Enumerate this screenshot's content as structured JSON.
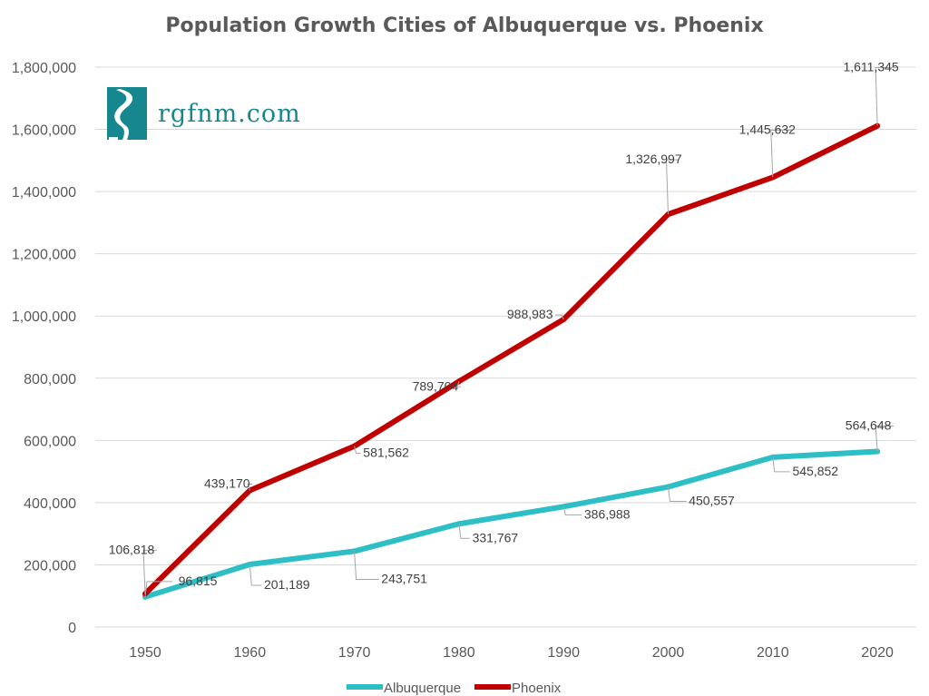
{
  "logo": {
    "text": "rgfnm.com",
    "color": "#16878f"
  },
  "chart_data": {
    "type": "line",
    "title": "Population Growth Cities of Albuquerque vs. Phoenix",
    "xlabel": "",
    "ylabel": "",
    "categories": [
      "1950",
      "1960",
      "1970",
      "1980",
      "1990",
      "2000",
      "2010",
      "2020"
    ],
    "ylim": [
      0,
      1800000
    ],
    "yticks": [
      "0",
      "200,000",
      "400,000",
      "600,000",
      "800,000",
      "1,000,000",
      "1,200,000",
      "1,400,000",
      "1,600,000",
      "1,800,000"
    ],
    "grid": true,
    "legend": "bottom",
    "series": [
      {
        "name": "Albuquerque",
        "color": "#2ebfc6",
        "values": [
          96815,
          201189,
          243751,
          331767,
          386988,
          450557,
          545852,
          564648
        ],
        "labels": [
          "96,815",
          "201,189",
          "243,751",
          "331,767",
          "386,988",
          "450,557",
          "545,852",
          "564,648"
        ]
      },
      {
        "name": "Phoenix",
        "color": "#c00000",
        "values": [
          106818,
          439170,
          581562,
          789704,
          988983,
          1326997,
          1445632,
          1611345
        ],
        "labels": [
          "106,818",
          "439,170",
          "581,562",
          "789,704",
          "988,983",
          "1,326,997",
          "1,445,632",
          "1,611,345"
        ]
      }
    ]
  }
}
